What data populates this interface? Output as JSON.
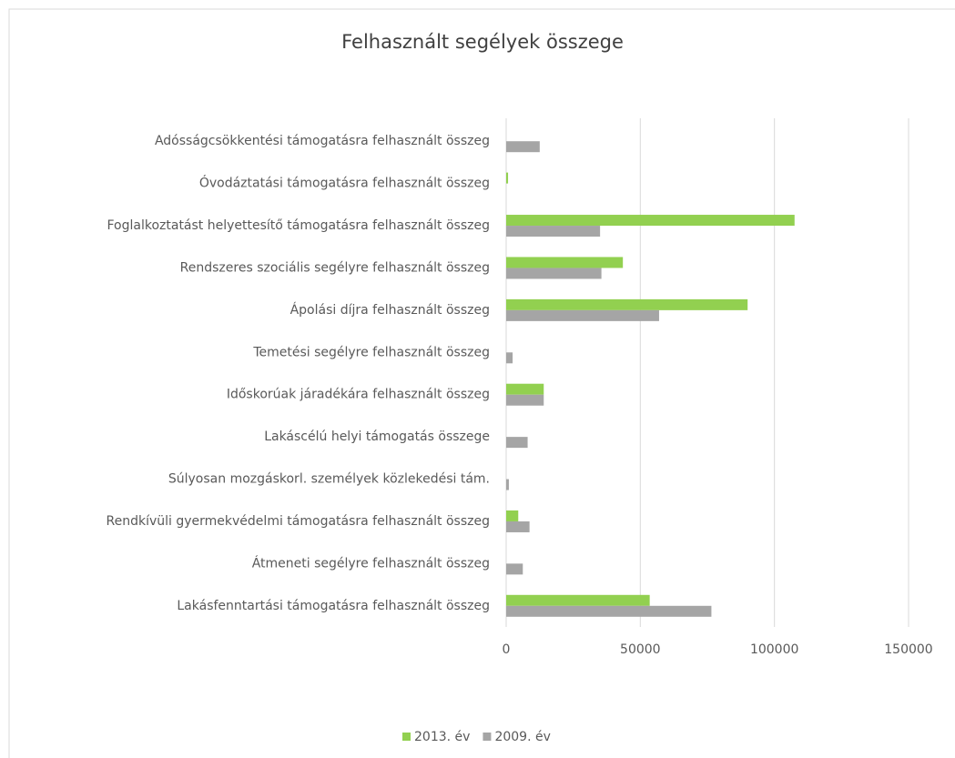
{
  "chart_data": {
    "type": "bar",
    "orientation": "horizontal",
    "title": "Felhasznált segélyek összege",
    "categories": [
      "Adósságcsökkentési támogatásra felhasznált összeg",
      "Óvodáztatási támogatásra felhasznált összeg",
      "Foglalkoztatást helyettesítő támogatásra felhasznált összeg",
      "Rendszeres szociális segélyre felhasznált összeg",
      "Ápolási díjra felhasznált összeg",
      "Temetési segélyre felhasznált összeg",
      "Időskorúak járadékára felhasznált összeg",
      "Lakáscélú helyi támogatás összege",
      "Súlyosan mozgáskorl. személyek közlekedési tám.",
      "Rendkívüli gyermekvédelmi támogatásra felhasznált összeg",
      "Átmeneti segélyre  felhasznált összeg",
      "Lakásfenntartási támogatásra felhasznált összeg"
    ],
    "series": [
      {
        "name": "2013. év",
        "color": "#92d050",
        "values": [
          null,
          700,
          107500,
          43500,
          90000,
          null,
          14000,
          null,
          null,
          4500,
          null,
          53500
        ]
      },
      {
        "name": "2009. év",
        "color": "#a5a5a5",
        "values": [
          12500,
          null,
          35000,
          35500,
          57000,
          2400,
          14000,
          8000,
          1000,
          8700,
          6200,
          76500
        ]
      }
    ],
    "xlim": [
      0,
      150000
    ],
    "xticks": [
      0,
      50000,
      100000,
      150000
    ],
    "grid": true,
    "legend": "bottom"
  }
}
